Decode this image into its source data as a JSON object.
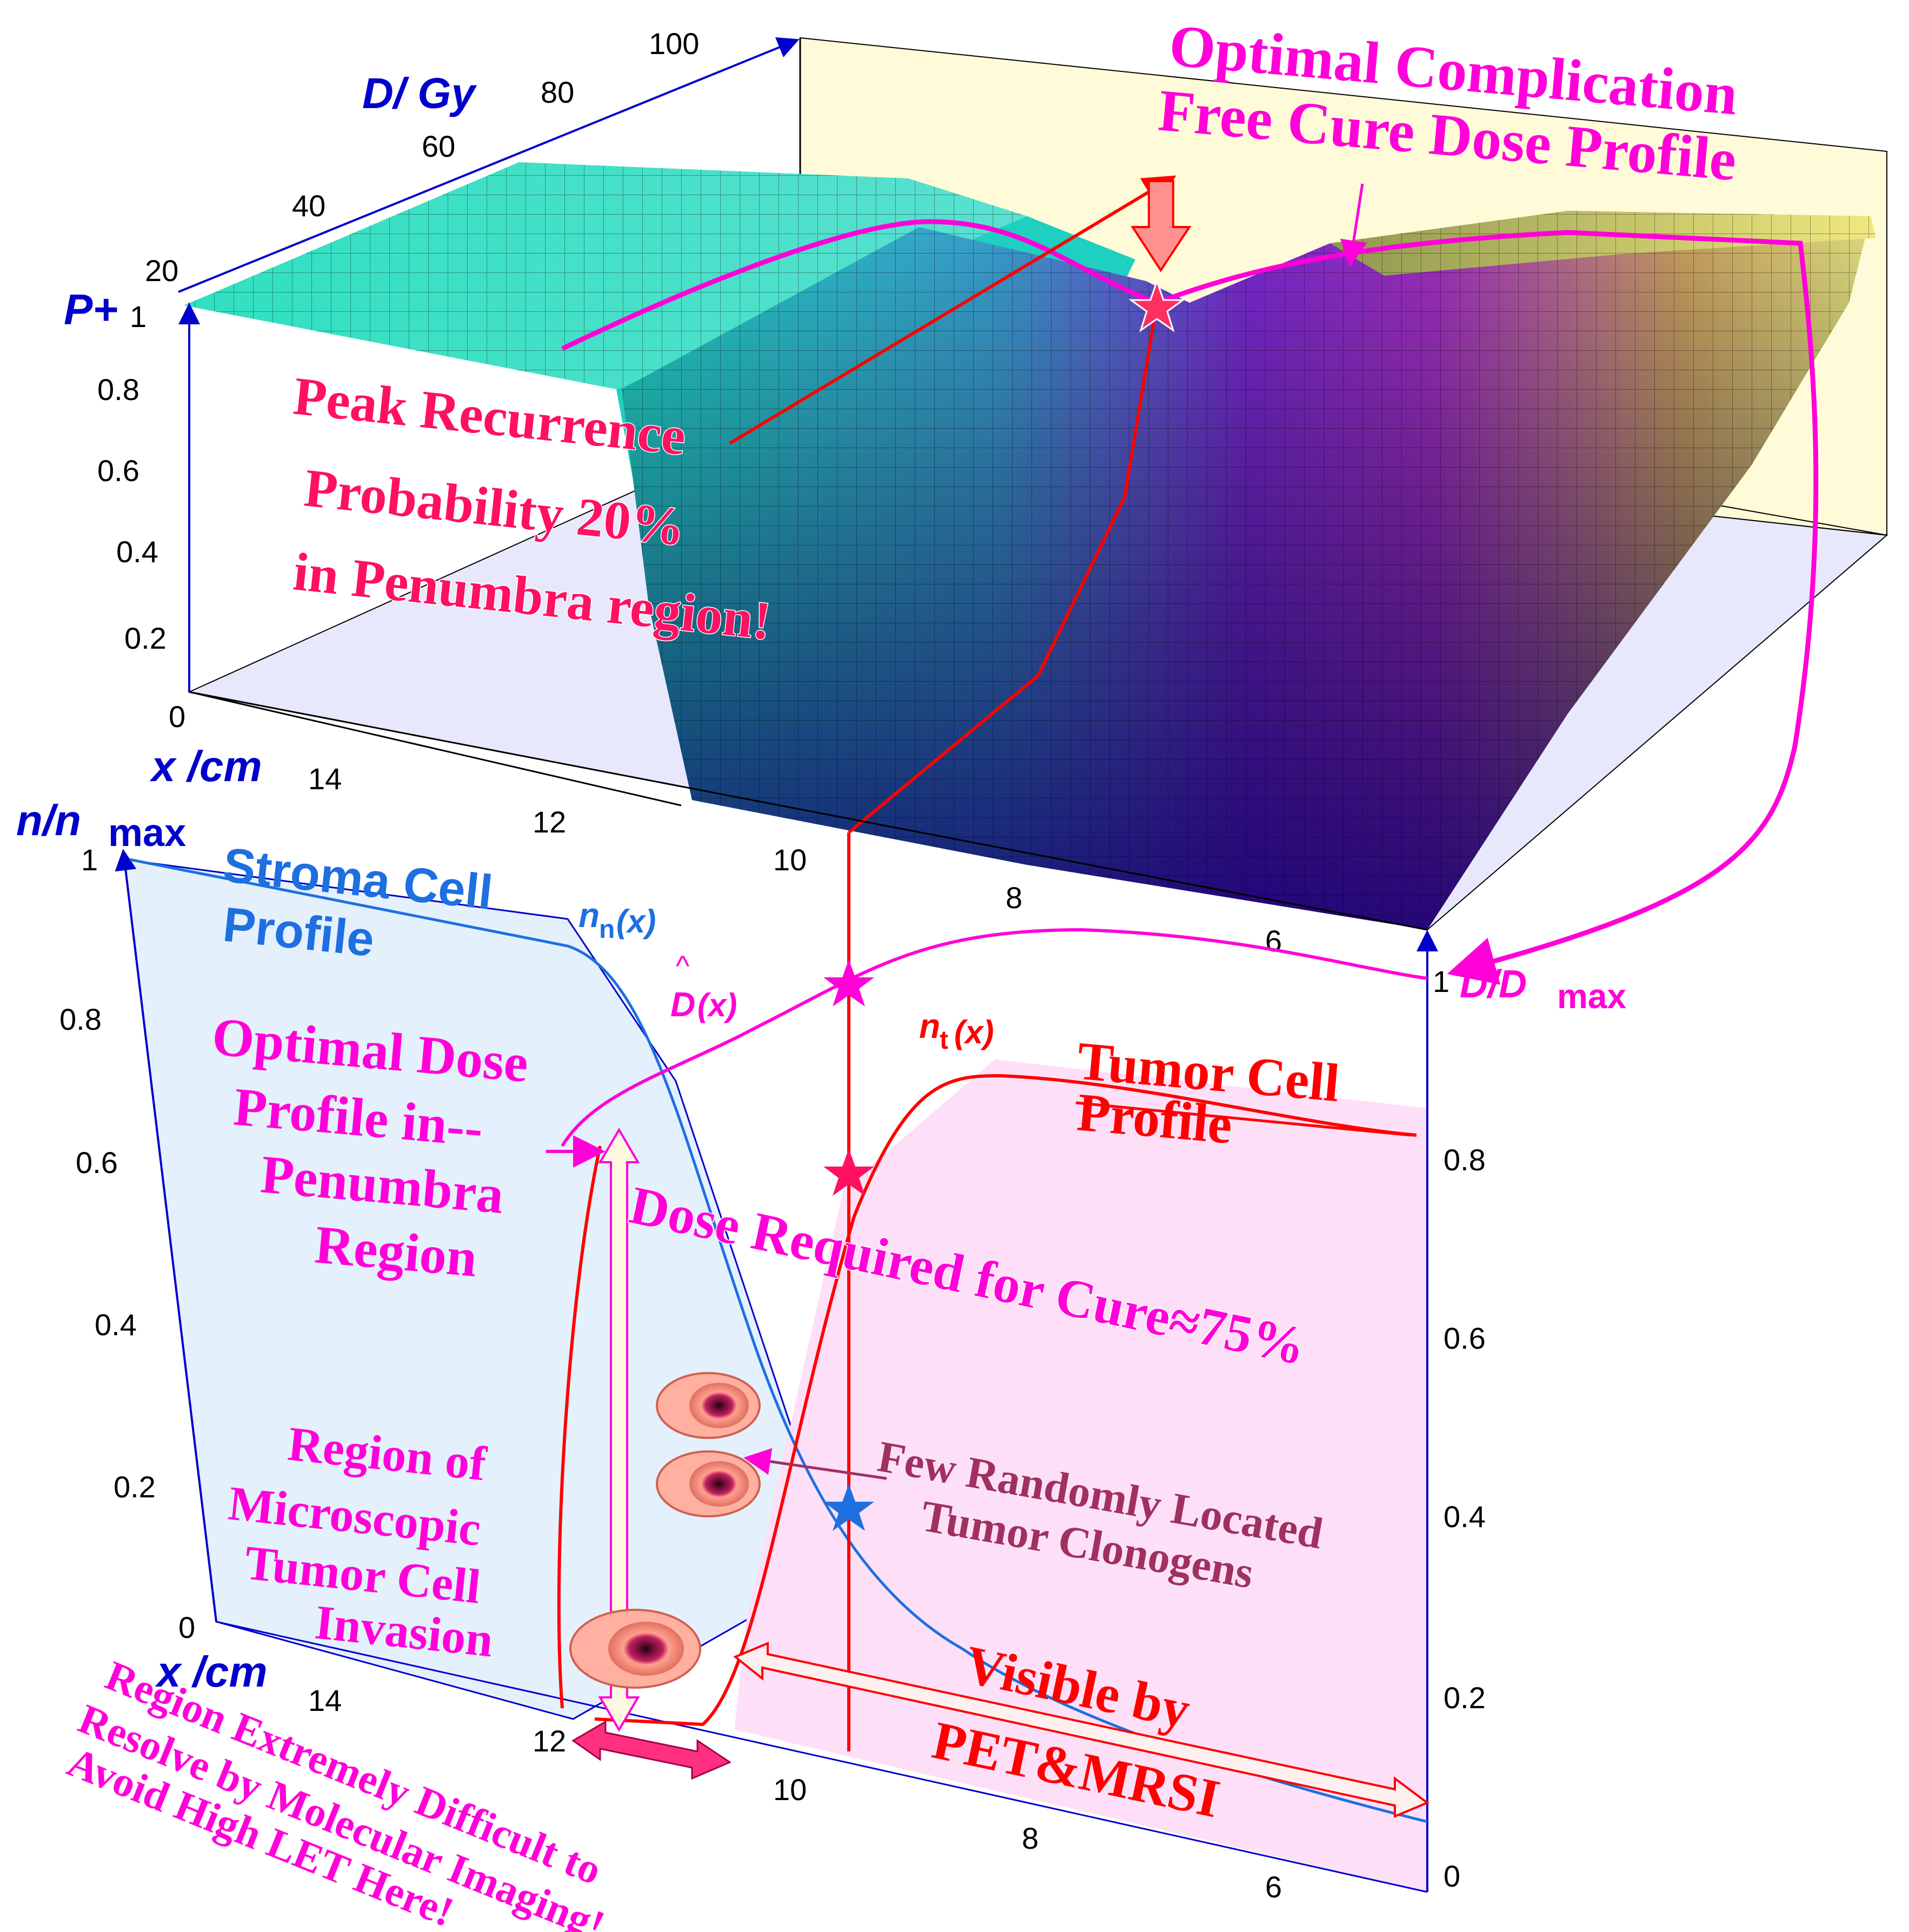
{
  "top_panel": {
    "z_axis_label_top": "D/ Gy",
    "z_ticks_top": [
      "20",
      "40",
      "60",
      "80",
      "100"
    ],
    "p_axis_label": "P+",
    "p_ticks": [
      "1",
      "0.8",
      "0.6",
      "0.4",
      "0.2",
      "0"
    ],
    "x_axis_label": "x /cm",
    "x_ticks": [
      "14",
      "12",
      "10",
      "8",
      "6"
    ],
    "title": "Optimal Complication Free Cure Dose Profile",
    "title_line1": "Optimal Complication",
    "title_line2": "Free Cure Dose Profile",
    "recurrence_line1": "Peak Recurrence",
    "recurrence_line2": "Probability  20%",
    "recurrence_line3": "in Penumbra region!"
  },
  "bottom_panel": {
    "n_axis_label": "n/n",
    "n_axis_sub": "max",
    "n_ticks": [
      "1",
      "0.8",
      "0.6",
      "0.4",
      "0.2",
      "0"
    ],
    "x_axis_label": "x /cm",
    "x_ticks": [
      "14",
      "12",
      "10",
      "8",
      "6"
    ],
    "right_axis_label": "D/D",
    "right_axis_sub": "max",
    "right_ticks": [
      "1",
      "0.8",
      "0.6",
      "0.4",
      "0.2",
      "0"
    ],
    "stroma_line1": "Stroma Cell",
    "stroma_line2": "Profile",
    "stroma_fn": "n",
    "stroma_fn_sub": "n",
    "stroma_fn_arg": "(x)",
    "dhat_label": "D",
    "dhat_hat": "^",
    "dhat_arg": "(x)",
    "tumor_fn": "n",
    "tumor_fn_sub": "t",
    "tumor_fn_arg": "(x)",
    "tumor_line1": "Tumor Cell",
    "tumor_line2": "Profile",
    "optimal_line1": "Optimal Dose",
    "optimal_line2": "Profile in--",
    "optimal_line3": "Penumbra",
    "optimal_line4": "Region",
    "cure_label": "Dose Required for Cure≈75%",
    "clonogen_line1": "Few Randomly Located",
    "clonogen_line2": "Tumor Clonogens",
    "invasion_line1": "Region of",
    "invasion_line2": "Microscopic",
    "invasion_line3": "Tumor Cell",
    "invasion_line4": "Invasion",
    "visible_line1": "Visible by",
    "visible_line2": "PET&MRSI",
    "difficult_line1": "Region Extremely Difficult to",
    "difficult_line2": "Resolve by Molecular Imaging!",
    "difficult_line3": "Avoid High LET Here!"
  },
  "colors": {
    "stroma": "#1e6fe0",
    "tumor": "#ff0000",
    "dose": "#ff00d8",
    "recurrence_text": "#ff1060",
    "clonogen_text": "#a03060",
    "axis": "#0000cc"
  }
}
